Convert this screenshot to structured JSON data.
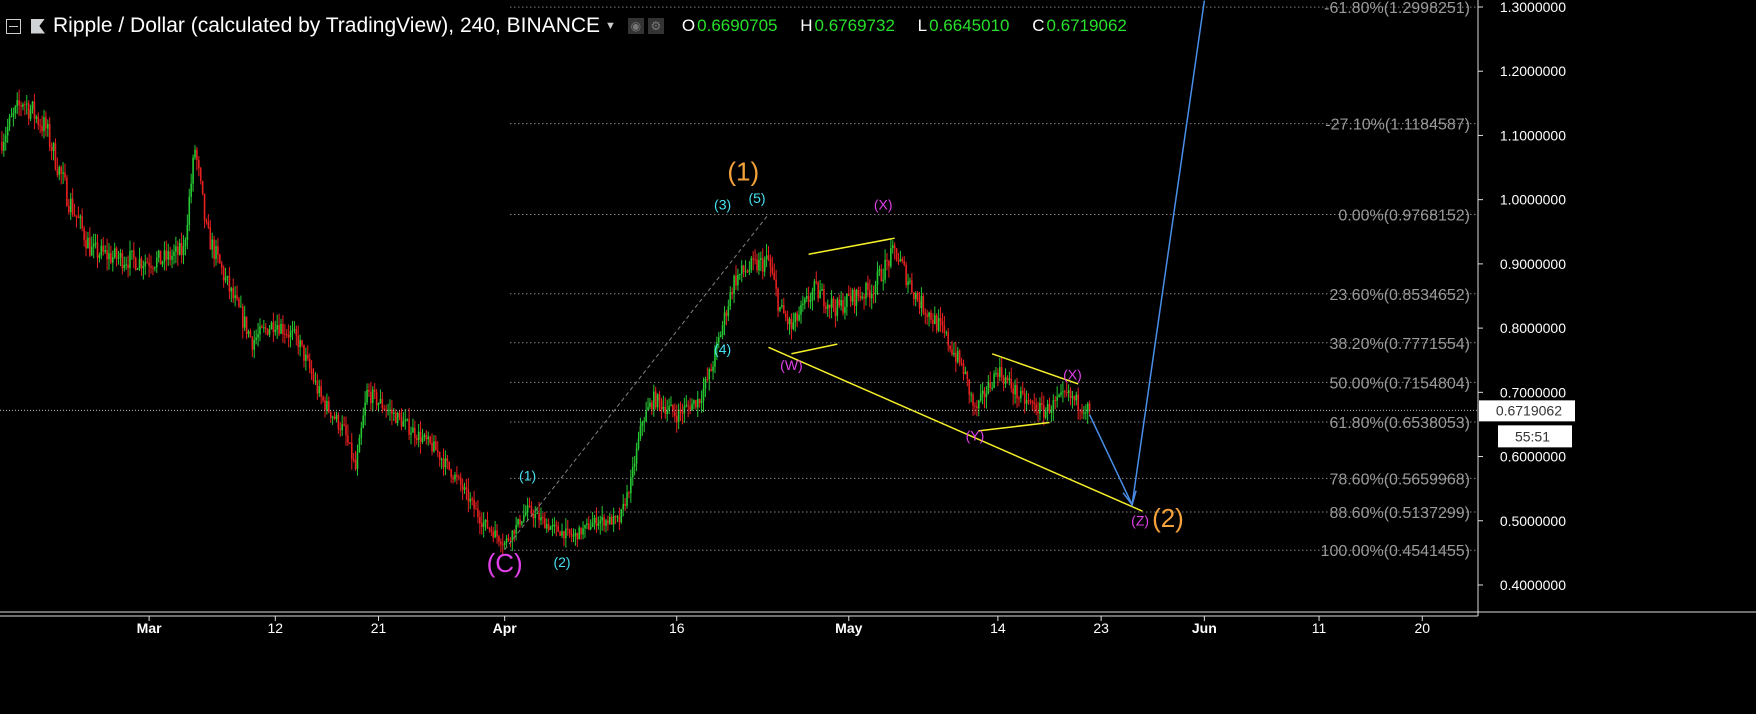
{
  "header": {
    "title": "Ripple / Dollar (calculated by TradingView), 240, BINANCE",
    "ohlc": [
      {
        "key": "O",
        "value": "0.6690705"
      },
      {
        "key": "H",
        "value": "0.6769732"
      },
      {
        "key": "L",
        "value": "0.6645010"
      },
      {
        "key": "C",
        "value": "0.6719062"
      }
    ]
  },
  "colors": {
    "up": "#26c833",
    "down": "#e82020",
    "fib": "#808080",
    "yellow": "#f5ef2a",
    "blue": "#4a8ee8",
    "pink": "#e040e8",
    "cyan": "#46e0f0",
    "orange": "#f5a23c",
    "ohlc_value": "#26e02a"
  },
  "price_label": {
    "value": "0.6719062",
    "countdown": "55:51"
  },
  "chart_data": {
    "type": "candlestick",
    "timeframe": "240",
    "ylim": [
      0.355,
      1.31
    ],
    "xlim": [
      "2018-02-16",
      "2018-06-24"
    ],
    "y_ticks": [
      "0.4000000",
      "0.5000000",
      "0.6000000",
      "0.7000000",
      "0.8000000",
      "0.9000000",
      "1.0000000",
      "1.1000000",
      "1.2000000",
      "1.3000000"
    ],
    "x_ticks": [
      {
        "date": "2018-03-01",
        "label": "Mar"
      },
      {
        "date": "2018-03-12",
        "label": "12"
      },
      {
        "date": "2018-03-21",
        "label": "21"
      },
      {
        "date": "2018-04-01",
        "label": "Apr"
      },
      {
        "date": "2018-04-16",
        "label": "16"
      },
      {
        "date": "2018-05-01",
        "label": "May"
      },
      {
        "date": "2018-05-14",
        "label": "14"
      },
      {
        "date": "2018-05-23",
        "label": "23"
      },
      {
        "date": "2018-06-01",
        "label": "Jun"
      },
      {
        "date": "2018-06-11",
        "label": "11"
      },
      {
        "date": "2018-06-20",
        "label": "20"
      }
    ],
    "approx_closes": [
      [
        "2018-02-16",
        1.09
      ],
      [
        "2018-02-18",
        1.155
      ],
      [
        "2018-02-20",
        1.11
      ],
      [
        "2018-02-22",
        1.0
      ],
      [
        "2018-02-24",
        0.92
      ],
      [
        "2018-02-26",
        0.91
      ],
      [
        "2018-02-28",
        0.905
      ],
      [
        "2018-03-02",
        0.905
      ],
      [
        "2018-03-04",
        0.92
      ],
      [
        "2018-03-05",
        1.08
      ],
      [
        "2018-03-06",
        0.95
      ],
      [
        "2018-03-08",
        0.86
      ],
      [
        "2018-03-10",
        0.78
      ],
      [
        "2018-03-12",
        0.81
      ],
      [
        "2018-03-14",
        0.78
      ],
      [
        "2018-03-16",
        0.69
      ],
      [
        "2018-03-18",
        0.64
      ],
      [
        "2018-03-19",
        0.58
      ],
      [
        "2018-03-20",
        0.7
      ],
      [
        "2018-03-22",
        0.67
      ],
      [
        "2018-03-24",
        0.64
      ],
      [
        "2018-03-26",
        0.61
      ],
      [
        "2018-03-28",
        0.56
      ],
      [
        "2018-03-30",
        0.5
      ],
      [
        "2018-04-01",
        0.465
      ],
      [
        "2018-04-03",
        0.517
      ],
      [
        "2018-04-05",
        0.49
      ],
      [
        "2018-04-07",
        0.475
      ],
      [
        "2018-04-09",
        0.5
      ],
      [
        "2018-04-11",
        0.5
      ],
      [
        "2018-04-12",
        0.56
      ],
      [
        "2018-04-13",
        0.656
      ],
      [
        "2018-04-14",
        0.69
      ],
      [
        "2018-04-16",
        0.665
      ],
      [
        "2018-04-18",
        0.69
      ],
      [
        "2018-04-19",
        0.735
      ],
      [
        "2018-04-21",
        0.875
      ],
      [
        "2018-04-22",
        0.89
      ],
      [
        "2018-04-24",
        0.905
      ],
      [
        "2018-04-25",
        0.83
      ],
      [
        "2018-04-26",
        0.8
      ],
      [
        "2018-04-28",
        0.86
      ],
      [
        "2018-04-30",
        0.83
      ],
      [
        "2018-05-01",
        0.845
      ],
      [
        "2018-05-03",
        0.86
      ],
      [
        "2018-05-05",
        0.92
      ],
      [
        "2018-05-07",
        0.845
      ],
      [
        "2018-05-09",
        0.8
      ],
      [
        "2018-05-11",
        0.735
      ],
      [
        "2018-05-12",
        0.67
      ],
      [
        "2018-05-14",
        0.735
      ],
      [
        "2018-05-16",
        0.69
      ],
      [
        "2018-05-18",
        0.67
      ],
      [
        "2018-05-20",
        0.695
      ],
      [
        "2018-05-22",
        0.672
      ]
    ],
    "last_price": 0.6719062,
    "fib_levels": [
      {
        "label": "-61.80%(1.2998251)",
        "price": 1.2998251
      },
      {
        "label": "-27.10%(1.1184587)",
        "price": 1.1184587
      },
      {
        "label": "0.00%(0.9768152)",
        "price": 0.9768152
      },
      {
        "label": "23.60%(0.8534652)",
        "price": 0.8534652
      },
      {
        "label": "38.20%(0.7771554)",
        "price": 0.7771554
      },
      {
        "label": "50.00%(0.7154804)",
        "price": 0.7154804
      },
      {
        "label": "61.80%(0.6538053)",
        "price": 0.6538053
      },
      {
        "label": "78.60%(0.5659968)",
        "price": 0.5659968
      },
      {
        "label": "88.60%(0.5137299)",
        "price": 0.5137299
      },
      {
        "label": "100.00%(0.4541455)",
        "price": 0.4541455
      }
    ],
    "wave_labels": [
      {
        "text": "(C)",
        "date": "2018-04-01",
        "price": 0.42,
        "color": "pink",
        "size": "large"
      },
      {
        "text": "(1)",
        "date": "2018-04-03",
        "price": 0.563,
        "color": "cyan",
        "size": "small"
      },
      {
        "text": "(2)",
        "date": "2018-04-06",
        "price": 0.428,
        "color": "cyan",
        "size": "small"
      },
      {
        "text": "(3)",
        "date": "2018-04-20",
        "price": 0.985,
        "color": "cyan",
        "size": "small"
      },
      {
        "text": "(4)",
        "date": "2018-04-20",
        "price": 0.76,
        "color": "cyan",
        "size": "small"
      },
      {
        "text": "(5)",
        "date": "2018-04-23",
        "price": 0.995,
        "color": "cyan",
        "size": "small"
      },
      {
        "text": "(1)",
        "date": "2018-04-21.8",
        "price": 1.03,
        "color": "orange",
        "size": "large"
      },
      {
        "text": "(W)",
        "date": "2018-04-26",
        "price": 0.735,
        "color": "pink",
        "size": "small"
      },
      {
        "text": "(X)",
        "date": "2018-05-04",
        "price": 0.985,
        "color": "pink",
        "size": "small"
      },
      {
        "text": "(Y)",
        "date": "2018-05-12",
        "price": 0.625,
        "color": "pink",
        "size": "small"
      },
      {
        "text": "(X)",
        "date": "2018-05-20.5",
        "price": 0.72,
        "color": "pink",
        "size": "small"
      },
      {
        "text": "(Z)",
        "date": "2018-05-26.4",
        "price": 0.493,
        "color": "pink",
        "size": "small"
      },
      {
        "text": "(2)",
        "date": "2018-05-27.8",
        "price": 0.49,
        "color": "orange",
        "size": "large"
      }
    ],
    "trend_lines": [
      {
        "from": [
          "2018-04-01",
          0.455
        ],
        "to": [
          "2018-04-24",
          0.977
        ],
        "color": "fib",
        "style": "dashed"
      },
      {
        "from": [
          "2018-04-24",
          0.77
        ],
        "to": [
          "2018-05-26.6",
          0.515
        ],
        "color": "yellow"
      },
      {
        "from": [
          "2018-04-27.5",
          0.915
        ],
        "to": [
          "2018-05-05",
          0.94
        ],
        "color": "yellow"
      },
      {
        "from": [
          "2018-04-26",
          0.76
        ],
        "to": [
          "2018-04-30",
          0.775
        ],
        "color": "yellow"
      },
      {
        "from": [
          "2018-05-13.5",
          0.76
        ],
        "to": [
          "2018-05-21",
          0.713
        ],
        "color": "yellow"
      },
      {
        "from": [
          "2018-05-12.3",
          0.64
        ],
        "to": [
          "2018-05-18.5",
          0.653
        ],
        "color": "yellow"
      }
    ],
    "projection_path": [
      [
        "2018-05-22",
        0.665
      ],
      [
        "2018-05-25.7",
        0.525
      ],
      [
        "2018-06-01",
        1.31
      ]
    ]
  }
}
